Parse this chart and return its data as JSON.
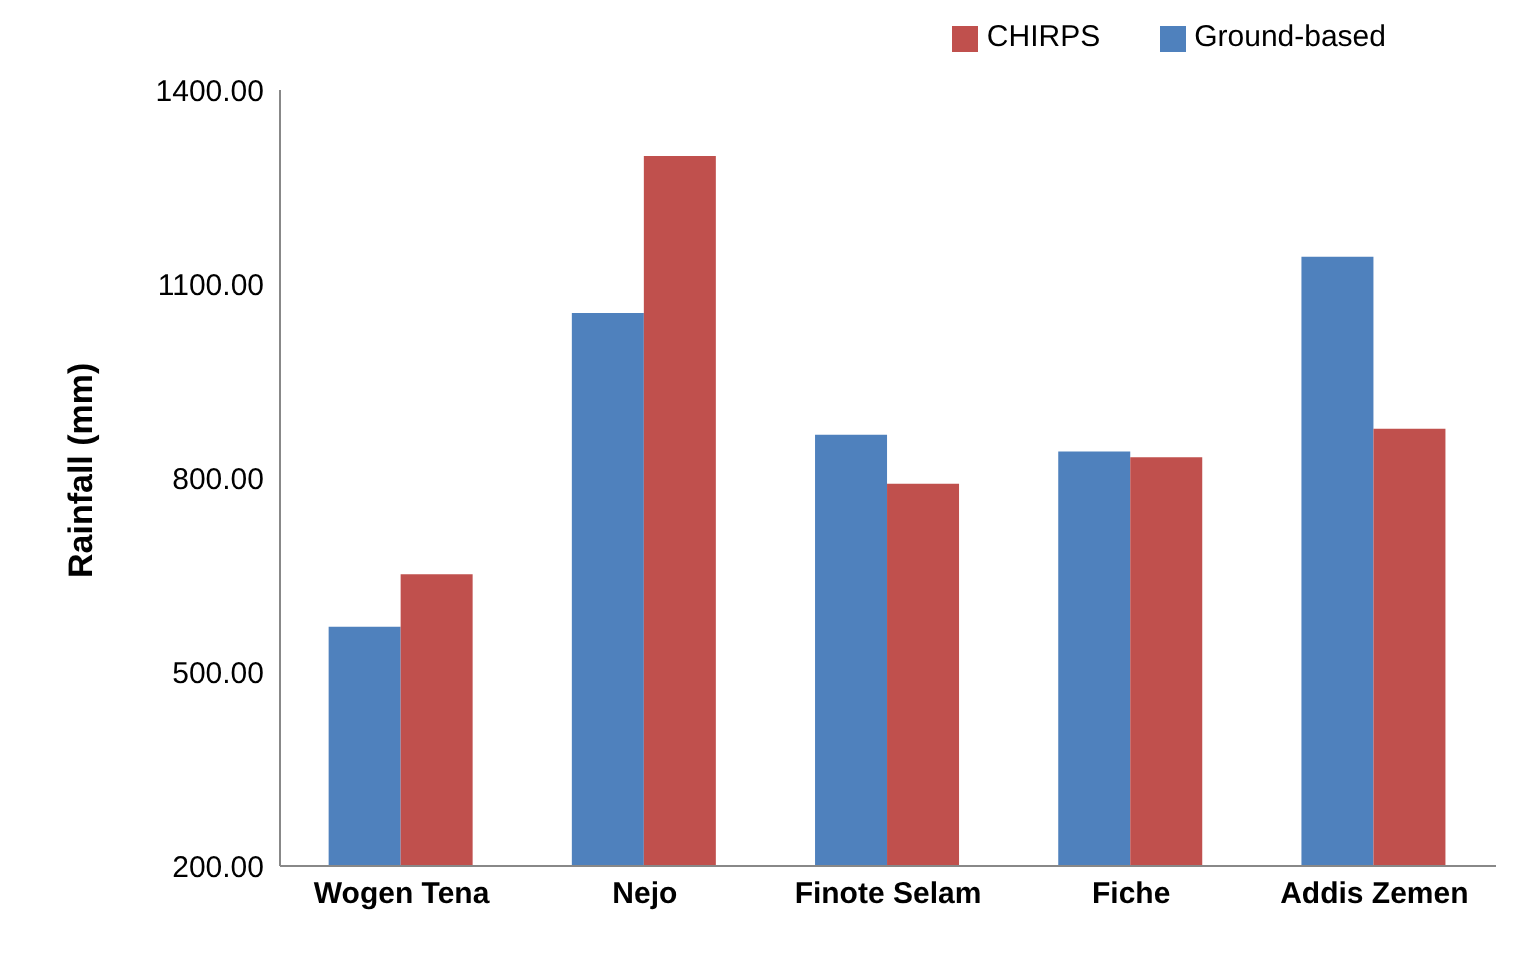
{
  "chart_data": {
    "type": "bar",
    "ylabel": "Rainfall (mm)",
    "categories": [
      "Wogen Tena",
      "Nejo",
      "Finote Selam",
      "Fiche",
      "Addis Zemen"
    ],
    "series": [
      {
        "name": "Ground-based",
        "color": "#4f81bd",
        "values": [
          570,
          1055,
          867,
          841,
          1142
        ]
      },
      {
        "name": "CHIRPS",
        "color": "#c0504d",
        "values": [
          651,
          1298,
          791,
          832,
          876
        ]
      }
    ],
    "ylim": [
      200,
      1400
    ],
    "yticks": [
      {
        "value": 200,
        "label": "200.00"
      },
      {
        "value": 500,
        "label": "500.00"
      },
      {
        "value": 800,
        "label": "800.00"
      },
      {
        "value": 1100,
        "label": "1100.00"
      },
      {
        "value": 1400,
        "label": "1400.00"
      }
    ],
    "grid": false,
    "legend": "top right"
  }
}
